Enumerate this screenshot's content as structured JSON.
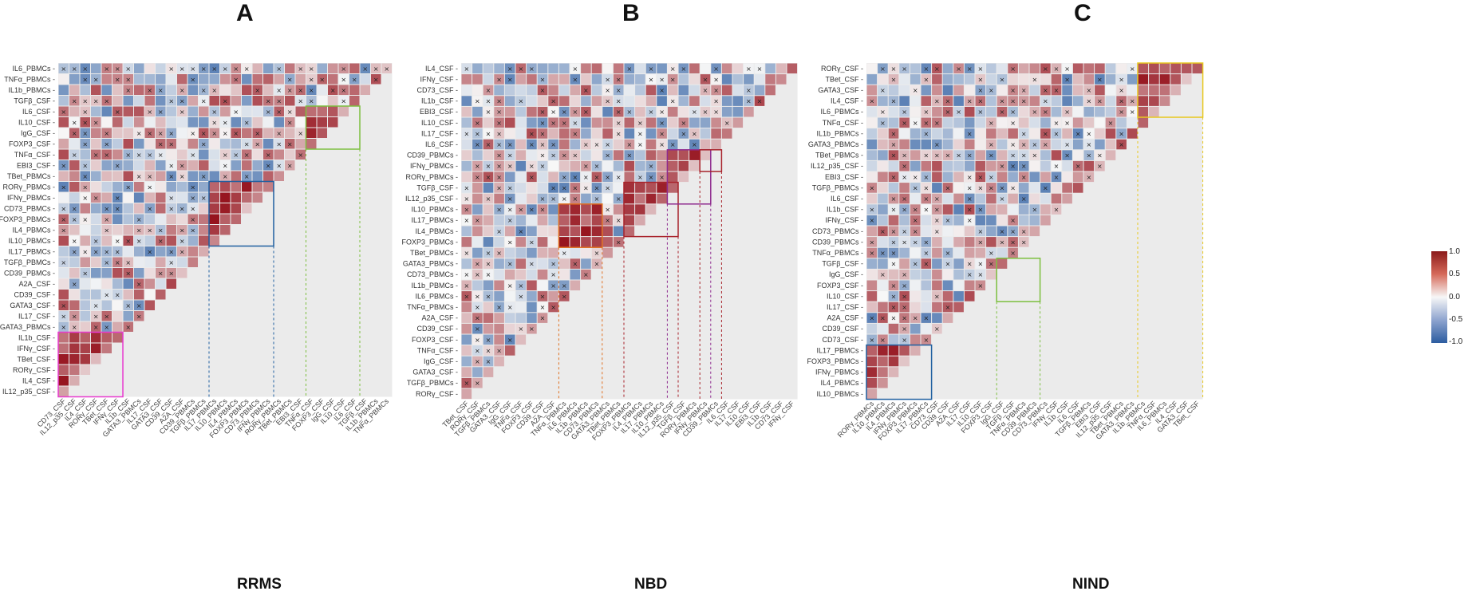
{
  "colors": {
    "positive": "#b2182b",
    "negative": "#2166ac",
    "neutral": "#f7f7f7",
    "grid": "#ebebeb",
    "cross": "#222222"
  },
  "legend": {
    "ticks": [
      "1.0",
      "0.5",
      "0.0",
      "-0.5",
      "-1.0"
    ],
    "values": [
      1.0,
      0.5,
      0.0,
      -0.5,
      -1.0
    ]
  },
  "panels": [
    {
      "letter": "A",
      "title": "RRMS",
      "labels": [
        "IL6_PBMCs",
        "TNFα_PBMCs",
        "IL1b_PBMCs",
        "TGFβ_CSF",
        "IL6_CSF",
        "IL10_CSF",
        "IgG_CSF",
        "FOXP3_CSF",
        "TNFα_CSF",
        "EBI3_CSF",
        "TBet_PBMCs",
        "RORγ_PBMCs",
        "IFNγ_PBMCs",
        "CD73_PBMCs",
        "FOXP3_PBMCs",
        "IL4_PBMCs",
        "IL10_PBMCs",
        "IL17_PBMCs",
        "TGFβ_PBMCs",
        "CD39_PBMCs",
        "A2A_CSF",
        "CD39_CSF",
        "GATA3_CSF",
        "IL17_CSF",
        "GATA3_PBMCs",
        "IL1b_CSF",
        "IFNγ_CSF",
        "TBet_CSF",
        "RORγ_CSF",
        "IL4_CSF",
        "IL12_p35_CSF"
      ],
      "x_labels": [
        "CD73_CSF",
        "IL12_p35_CSF",
        "IL4_CSF",
        "RORγ_CSF",
        "TBet_CSF",
        "IFNγ_CSF",
        "IL1b_CSF",
        "GATA3_PBMCs",
        "IL17_CSF",
        "GATA3_CSF",
        "CD39_CSF",
        "A2A_CSF",
        "CD39_PBMCs",
        "TGFβ_PBMCs",
        "IL17_PBMCs",
        "IL10_PBMCs",
        "IL4_PBMCs",
        "FOXP3_PBMCs",
        "CD73_PBMCs",
        "IFNγ_PBMCs",
        "RORγ_PBMCs",
        "TBet_PBMCs",
        "EBI3_CSF",
        "TNFα_CSF",
        "FOXP3_CSF",
        "IgG_CSF",
        "IL10_CSF",
        "IL6_CSF",
        "TGFβ_CSF",
        "IL1b_PBMCs",
        "TNFα_PBMCs"
      ],
      "boxes": [
        {
          "rows": [
            11,
            16
          ],
          "cols": [
            14,
            19
          ],
          "color": "#1f5fa0"
        },
        {
          "rows": [
            4,
            7
          ],
          "cols": [
            23,
            27
          ],
          "color": "#7cbf3f"
        },
        {
          "rows": [
            25,
            30
          ],
          "cols": [
            0,
            5
          ],
          "color": "#e83bd0"
        }
      ]
    },
    {
      "letter": "B",
      "title": "NBD",
      "labels": [
        "IL4_CSF",
        "IFNγ_CSF",
        "CD73_CSF",
        "IL1b_CSF",
        "EBI3_CSF",
        "IL10_CSF",
        "IL17_CSF",
        "IL6_CSF",
        "CD39_PBMCs",
        "IFNγ_PBMCs",
        "RORγ_PBMCs",
        "TGFβ_CSF",
        "IL12_p35_CSF",
        "IL10_PBMCs",
        "IL17_PBMCs",
        "IL4_PBMCs",
        "FOXP3_PBMCs",
        "TBet_PBMCs",
        "GATA3_PBMCs",
        "CD73_PBMCs",
        "IL1b_PBMCs",
        "IL6_PBMCs",
        "TNFα_PBMCs",
        "A2A_CSF",
        "CD39_CSF",
        "FOXP3_CSF",
        "TNFα_CSF",
        "IgG_CSF",
        "GATA3_CSF",
        "TGFβ_PBMCs",
        "RORγ_CSF"
      ],
      "x_labels": [
        "TBet_CSF",
        "RORγ_CSF",
        "TGFβ_PBMCs",
        "GATA3_CSF",
        "IgG_CSF",
        "TNFα_CSF",
        "FOXP3_CSF",
        "CD39_CSF",
        "A2A_CSF",
        "TNFα_PBMCs",
        "IL6_PBMCs",
        "IL1b_PBMCs",
        "CD73_PBMCs",
        "GATA3_PBMCs",
        "TBet_PBMCs",
        "FOXP3_PBMCs",
        "IL4_PBMCs",
        "IL17_PBMCs",
        "IL10_PBMCs",
        "IL12_p35_CSF",
        "TGFβ_CSF",
        "RORγ_PBMCs",
        "IFNγ_PBMCs",
        "CD39_PBMCs",
        "IL6_CSF",
        "IL17_CSF",
        "IL10_CSF",
        "EBI3_CSF",
        "IL1b_CSF",
        "CD73_CSF",
        "IFNγ_CSF"
      ],
      "boxes": [
        {
          "rows": [
            13,
            16
          ],
          "cols": [
            9,
            12
          ],
          "color": "#e07020"
        },
        {
          "rows": [
            11,
            15
          ],
          "cols": [
            15,
            19
          ],
          "color": "#a8232b"
        },
        {
          "rows": [
            8,
            12
          ],
          "cols": [
            19,
            22
          ],
          "color": "#8e2a8e"
        },
        {
          "rows": [
            8,
            9
          ],
          "cols": [
            22,
            23
          ],
          "color": "#a8232b"
        }
      ]
    },
    {
      "letter": "C",
      "title": "NIND",
      "labels": [
        "RORγ_CSF",
        "TBet_CSF",
        "GATA3_CSF",
        "IL4_CSF",
        "IL6_PBMCs",
        "TNFα_CSF",
        "IL1b_PBMCs",
        "GATA3_PBMCs",
        "TBet_PBMCs",
        "IL12_p35_CSF",
        "EBI3_CSF",
        "TGFβ_PBMCs",
        "IL6_CSF",
        "IL1b_CSF",
        "IFNγ_CSF",
        "CD73_PBMCs",
        "CD39_PBMCs",
        "TNFα_PBMCs",
        "TGFβ_CSF",
        "IgG_CSF",
        "FOXP3_CSF",
        "IL10_CSF",
        "IL17_CSF",
        "A2A_CSF",
        "CD39_CSF",
        "CD73_CSF",
        "IL17_PBMCs",
        "FOXP3_PBMCs",
        "IFNγ_PBMCs",
        "IL4_PBMCs",
        "IL10_PBMCs"
      ],
      "x_labels": [
        "RORγ_PBMCs",
        "IL10_PBMCs",
        "IL4_PBMCs",
        "IFNγ_PBMCs",
        "FOXP3_PBMCs",
        "IL17_PBMCs",
        "CD73_CSF",
        "CD39_CSF",
        "A2A_CSF",
        "IL17_CSF",
        "IL10_CSF",
        "FOXP3_CSF",
        "IgG_CSF",
        "TGFβ_CSF",
        "TNFα_PBMCs",
        "CD39_PBMCs",
        "CD73_PBMCs",
        "IFNγ_CSF",
        "IL1b_CSF",
        "IL6_CSF",
        "TGFβ_PBMCs",
        "EBI3_CSF",
        "IL12_p35_CSF",
        "TBet_PBMCs",
        "GATA3_PBMCs",
        "IL1b_PBMCs",
        "TNFα_CSF",
        "IL6_PBMCs",
        "IL4_CSF",
        "GATA3_CSF",
        "TBet_CSF"
      ],
      "boxes": [
        {
          "rows": [
            0,
            4
          ],
          "cols": [
            25,
            30
          ],
          "color": "#e8c81e"
        },
        {
          "rows": [
            18,
            21
          ],
          "cols": [
            12,
            15
          ],
          "color": "#7cbf3f"
        },
        {
          "rows": [
            26,
            30
          ],
          "cols": [
            0,
            5
          ],
          "color": "#1f5fa0"
        }
      ]
    }
  ],
  "chart_data": [
    {
      "type": "heatmap",
      "title": "RRMS",
      "panel": "A",
      "value_range": [
        -1.0,
        1.0
      ],
      "note": "Lower-triangular Spearman correlation matrix; × marks non-significant correlations",
      "rows": [
        "IL6_PBMCs",
        "TNFα_PBMCs",
        "IL1b_PBMCs",
        "TGFβ_CSF",
        "IL6_CSF",
        "IL10_CSF",
        "IgG_CSF",
        "FOXP3_CSF",
        "TNFα_CSF",
        "EBI3_CSF",
        "TBet_PBMCs",
        "RORγ_PBMCs",
        "IFNγ_PBMCs",
        "CD73_PBMCs",
        "FOXP3_PBMCs",
        "IL4_PBMCs",
        "IL10_PBMCs",
        "IL17_PBMCs",
        "TGFβ_PBMCs",
        "CD39_PBMCs",
        "A2A_CSF",
        "CD39_CSF",
        "GATA3_CSF",
        "IL17_CSF",
        "GATA3_PBMCs",
        "IL1b_CSF",
        "IFNγ_CSF",
        "TBet_CSF",
        "RORγ_CSF",
        "IL4_CSF",
        "IL12_p35_CSF"
      ]
    },
    {
      "type": "heatmap",
      "title": "NBD",
      "panel": "B",
      "value_range": [
        -1.0,
        1.0
      ]
    },
    {
      "type": "heatmap",
      "title": "NIND",
      "panel": "C",
      "value_range": [
        -1.0,
        1.0
      ]
    }
  ]
}
